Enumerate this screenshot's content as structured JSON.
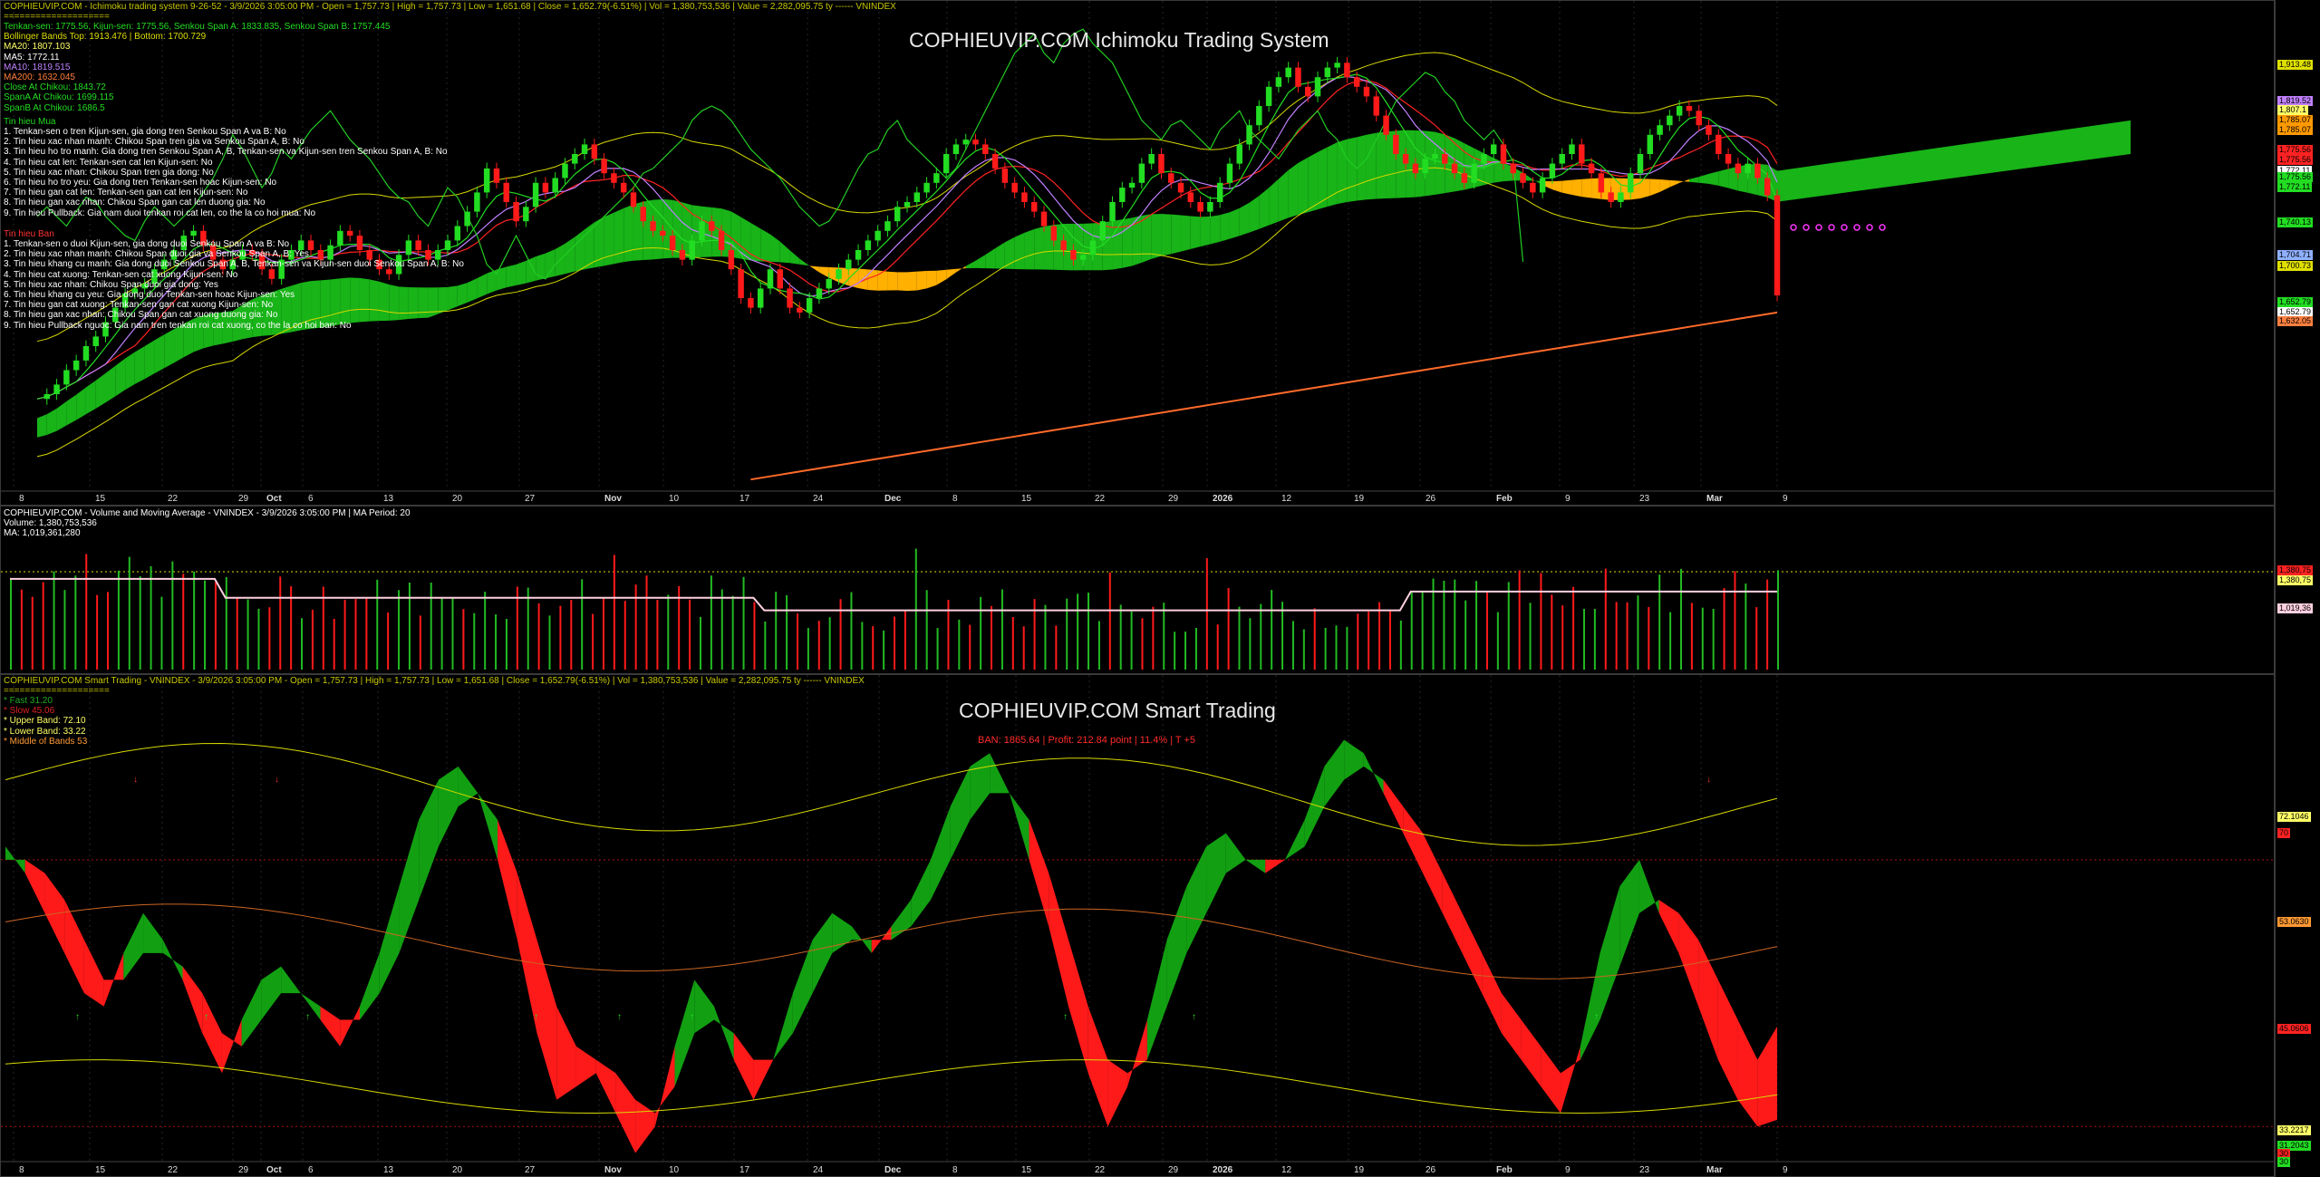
{
  "ichimoku": {
    "title": "COPHIEUVIP.COM Ichimoku Trading System",
    "header": [
      {
        "text": "COPHIEUVIP.COM - Ichimoku trading system 9-26-52 - 3/9/2026 3:05:00 PM - Open = 1,757.73 | High = 1,757.73 | Low = 1,651.68 | Close = 1,652.79(-6.51%) | Vol = 1,380,753,536 | Value = 2,282,095.75 ty ------ VNINDEX",
        "color": "#c8c800"
      },
      {
        "text": "====================",
        "color": "#c8c800"
      }
    ],
    "indicators": [
      {
        "text": "Tenkan-sen: 1775.56, Kijun-sen: 1775.56, Senkou Span A: 1833.835, Senkou Span B: 1757.445",
        "color": "#22dd22"
      },
      {
        "text": "Bollinger Bands Top: 1913.476 | Bottom: 1700.729",
        "color": "#dddd00"
      },
      {
        "text": "MA20: 1807.103",
        "color": "#ffff66"
      },
      {
        "text": "MA5: 1772.11",
        "color": "#ffffff"
      },
      {
        "text": "MA10: 1819.515",
        "color": "#c080ff"
      },
      {
        "text": "MA200: 1632.045",
        "color": "#ff7f3f"
      },
      {
        "text": "Close At Chikou: 1843.72",
        "color": "#22dd22"
      },
      {
        "text": "SpanA At Chikou: 1699.115",
        "color": "#22dd22"
      },
      {
        "text": "SpanB At Chikou: 1686.5",
        "color": "#22dd22"
      }
    ],
    "buy_heading": "Tin hieu Mua",
    "buy_signals": [
      "1. Tenkan-sen o tren Kijun-sen, gia dong tren Senkou Span A va B: No",
      "2. Tin hieu xac nhan manh: Chikou Span tren gia va Senkou Span A, B: No",
      "3. Tin hieu ho tro manh: Gia dong tren Senkou Span A, B, Tenkan-sen va Kijun-sen tren Senkou Span A, B: No",
      "4. Tin hieu cat len: Tenkan-sen cat len Kijun-sen: No",
      "5. Tin hieu xac nhan: Chikou Span tren gia dong: No",
      "6. Tin hieu ho tro yeu: Gia dong tren Tenkan-sen hoac Kijun-sen: No",
      "7. Tin hieu gan cat len: Tenkan-sen gan cat len Kijun-sen: No",
      "8. Tin hieu gan xac nhan: Chikou Span gan cat len duong gia: No",
      "9. Tin hieu Pullback: Gia nam duoi tenkan roi cat len, co the la co hoi mua: No"
    ],
    "sell_heading": "Tin hieu Ban",
    "sell_signals": [
      "1. Tenkan-sen o duoi Kijun-sen, gia dong duoi Senkou Span A va B: No",
      "2. Tin hieu xac nhan manh: Chikou Span duoi gia va Senkou Span A, B: Yes",
      "3. Tin hieu khang cu manh: Gia dong duoi Senkou Span A, B, Tenkan-sen va Kijun-sen duoi Senkou Span A, B: No",
      "4. Tin hieu cat xuong: Tenkan-sen cat xuong Kijun-sen: No",
      "5. Tin hieu xac nhan: Chikou Span duoi gia dong: Yes",
      "6. Tin hieu khang cu yeu: Gia dong duoi Tenkan-sen hoac Kijun-sen: Yes",
      "7. Tin hieu gan cat xuong: Tenkan-sen gan cat xuong Kijun-sen: No",
      "8. Tin hieu gan xac nhan: Chikou Span gan cat xuong duong gia: No",
      "9. Tin hieu Pullback nguoc: Gia nam tren tenkan roi cat xuong, co the la co hoi ban: No"
    ],
    "price_tags": [
      {
        "v": "1,913.48",
        "bg": "#e0e000"
      },
      {
        "v": "1,819.52",
        "bg": "#c080ff"
      },
      {
        "v": "1,807.1",
        "bg": "#ffff66"
      },
      {
        "v": "1,785.07",
        "bg": "#ff9900"
      },
      {
        "v": "1,785.07",
        "bg": "#ff9900"
      },
      {
        "v": "1,775.56",
        "bg": "#ff2222"
      },
      {
        "v": "1,775.56",
        "bg": "#ff2222"
      },
      {
        "v": "1,772.11",
        "bg": "#ffffff"
      },
      {
        "v": "1,775.56",
        "bg": "#22dd22"
      },
      {
        "v": "1,772.11",
        "bg": "#22dd22"
      },
      {
        "v": "1,740.13",
        "bg": "#22dd22"
      },
      {
        "v": "1,704.71",
        "bg": "#8fb0ff"
      },
      {
        "v": "1,700.73",
        "bg": "#e0e000"
      },
      {
        "v": "1,652.79",
        "bg": "#22dd22"
      },
      {
        "v": "1,652.79",
        "bg": "#ffffff"
      },
      {
        "v": "1,632.05",
        "bg": "#ff7f3f"
      }
    ]
  },
  "volume": {
    "header": [
      {
        "text": "COPHIEUVIP.COM - Volume and Moving Average - VNINDEX - 3/9/2026 3:05:00 PM | MA Period: 20",
        "color": "#ffffff"
      },
      {
        "text": "Volume: 1,380,753,536",
        "color": "#ffffff"
      },
      {
        "text": "MA: 1,019,361,280",
        "color": "#ffffff"
      }
    ],
    "tags": [
      {
        "v": "1,380,75",
        "bg": "#ff2222"
      },
      {
        "v": "1,380,75",
        "bg": "#ffff66"
      },
      {
        "v": "1,019,36",
        "bg": "#ffd0e0"
      }
    ]
  },
  "smart": {
    "title": "COPHIEUVIP.COM Smart Trading",
    "subtitle": "BAN:  1865.64  |  Profit: 212.84 point  |  11.4%  |  T +5",
    "header": [
      {
        "text": "COPHIEUVIP.COM Smart Trading - VNINDEX - 3/9/2026 3:05:00 PM - Open = 1,757.73 | High = 1,757.73 | Low = 1,651.68 | Close = 1,652.79(-6.51%) | Vol = 1,380,753,536 | Value = 2,282,095.75 ty ------ VNINDEX",
        "color": "#c8c800"
      },
      {
        "text": "====================",
        "color": "#c8c800"
      }
    ],
    "legend": [
      {
        "text": "* Fast    31.20",
        "color": "#22aa22"
      },
      {
        "text": "* Slow    45.06",
        "color": "#dd2222"
      },
      {
        "text": "* Upper Band:  72.10",
        "color": "#ffff66"
      },
      {
        "text": "* Lower Band:  33.22",
        "color": "#ffff66"
      },
      {
        "text": "* Middle of Bands      53",
        "color": "#ff9933"
      }
    ],
    "tags": [
      {
        "v": "72.1046",
        "bg": "#ffff66"
      },
      {
        "v": "70",
        "bg": "#ff2222"
      },
      {
        "v": "53.0630",
        "bg": "#ff9933"
      },
      {
        "v": "45.0606",
        "bg": "#ff2222"
      },
      {
        "v": "33.2217",
        "bg": "#ffff66"
      },
      {
        "v": "31.2043",
        "bg": "#22dd22"
      },
      {
        "v": "30",
        "bg": "#ff2222"
      },
      {
        "v": "30",
        "bg": "#22dd22"
      }
    ]
  },
  "date_labels": [
    {
      "t": "8",
      "b": false
    },
    {
      "t": "15",
      "b": false
    },
    {
      "t": "22",
      "b": false
    },
    {
      "t": "29",
      "b": false
    },
    {
      "t": "Oct",
      "b": true
    },
    {
      "t": "6",
      "b": false
    },
    {
      "t": "13",
      "b": false
    },
    {
      "t": "20",
      "b": false
    },
    {
      "t": "27",
      "b": false
    },
    {
      "t": "Nov",
      "b": true
    },
    {
      "t": "10",
      "b": false
    },
    {
      "t": "17",
      "b": false
    },
    {
      "t": "24",
      "b": false
    },
    {
      "t": "Dec",
      "b": true
    },
    {
      "t": "8",
      "b": false
    },
    {
      "t": "15",
      "b": false
    },
    {
      "t": "22",
      "b": false
    },
    {
      "t": "29",
      "b": false
    },
    {
      "t": "2026",
      "b": true
    },
    {
      "t": "12",
      "b": false
    },
    {
      "t": "19",
      "b": false
    },
    {
      "t": "26",
      "b": false
    },
    {
      "t": "Feb",
      "b": true
    },
    {
      "t": "9",
      "b": false
    },
    {
      "t": "23",
      "b": false
    },
    {
      "t": "Mar",
      "b": true
    },
    {
      "t": "9",
      "b": false
    }
  ],
  "colors": {
    "up": "#22dd22",
    "down": "#ff1a1a",
    "cloud_up": "#18b418",
    "cloud_down": "#ffb000",
    "grid": "#333333"
  },
  "chart_data": [
    {
      "type": "candlestick",
      "title": "COPHIEUVIP.COM Ichimoku Trading System",
      "ylim": [
        1450,
        1950
      ],
      "last": {
        "open": 1757.73,
        "high": 1757.73,
        "low": 1651.68,
        "close": 1652.79
      },
      "closes": [
        1545,
        1550,
        1560,
        1575,
        1585,
        1600,
        1610,
        1625,
        1640,
        1655,
        1660,
        1665,
        1680,
        1690,
        1700,
        1715,
        1720,
        1705,
        1690,
        1680,
        1690,
        1700,
        1695,
        1680,
        1670,
        1690,
        1700,
        1710,
        1700,
        1690,
        1705,
        1720,
        1715,
        1700,
        1690,
        1680,
        1675,
        1695,
        1710,
        1700,
        1690,
        1700,
        1710,
        1725,
        1740,
        1760,
        1785,
        1770,
        1750,
        1730,
        1745,
        1770,
        1760,
        1775,
        1790,
        1800,
        1810,
        1795,
        1780,
        1770,
        1760,
        1745,
        1730,
        1720,
        1715,
        1700,
        1690,
        1710,
        1730,
        1720,
        1700,
        1680,
        1650,
        1640,
        1660,
        1680,
        1660,
        1640,
        1635,
        1650,
        1660,
        1670,
        1680,
        1690,
        1700,
        1710,
        1720,
        1730,
        1745,
        1750,
        1760,
        1770,
        1780,
        1800,
        1810,
        1815,
        1810,
        1800,
        1785,
        1770,
        1760,
        1750,
        1740,
        1725,
        1710,
        1700,
        1690,
        1695,
        1710,
        1730,
        1750,
        1765,
        1770,
        1790,
        1800,
        1780,
        1770,
        1760,
        1750,
        1740,
        1750,
        1770,
        1790,
        1810,
        1830,
        1850,
        1870,
        1880,
        1890,
        1870,
        1860,
        1880,
        1890,
        1895,
        1880,
        1870,
        1860,
        1840,
        1820,
        1800,
        1790,
        1780,
        1795,
        1800,
        1790,
        1780,
        1770,
        1790,
        1800,
        1810,
        1790,
        1780,
        1770,
        1760,
        1775,
        1790,
        1800,
        1810,
        1790,
        1780,
        1760,
        1750,
        1760,
        1780,
        1800,
        1820,
        1830,
        1840,
        1850,
        1845,
        1830,
        1820,
        1800,
        1790,
        1780,
        1790,
        1775,
        1757,
        1652.79
      ]
    },
    {
      "type": "bar",
      "title": "Volume and Moving Average - VNINDEX",
      "last_volume": 1380753536,
      "ma": 1019361280,
      "ylim": [
        0,
        1700000000
      ]
    },
    {
      "type": "area",
      "title": "COPHIEUVIP.COM Smart Trading",
      "series": [
        {
          "name": "Fast",
          "last": 31.2
        },
        {
          "name": "Slow",
          "last": 45.06
        },
        {
          "name": "Upper Band",
          "last": 72.1
        },
        {
          "name": "Lower Band",
          "last": 33.22
        },
        {
          "name": "Middle of Bands",
          "last": 53
        }
      ],
      "ylim": [
        25,
        95
      ],
      "fast": [
        72,
        68,
        62,
        56,
        50,
        48,
        56,
        62,
        58,
        52,
        44,
        38,
        46,
        52,
        54,
        50,
        46,
        42,
        48,
        56,
        66,
        76,
        82,
        84,
        80,
        70,
        58,
        44,
        34,
        36,
        38,
        32,
        26,
        30,
        42,
        52,
        48,
        40,
        34,
        40,
        50,
        58,
        62,
        60,
        56,
        60,
        64,
        70,
        78,
        84,
        86,
        80,
        70,
        60,
        48,
        38,
        30,
        36,
        46,
        58,
        66,
        72,
        74,
        70,
        68,
        70,
        76,
        84,
        88,
        86,
        80,
        74,
        68,
        62,
        56,
        50,
        44,
        40,
        36,
        32,
        42,
        56,
        66,
        70,
        62,
        56,
        48,
        40,
        34,
        30,
        31
      ],
      "slow": [
        70,
        70,
        68,
        64,
        58,
        52,
        52,
        56,
        56,
        54,
        50,
        44,
        42,
        46,
        50,
        50,
        48,
        46,
        46,
        50,
        56,
        64,
        72,
        78,
        80,
        76,
        68,
        58,
        48,
        42,
        40,
        38,
        34,
        32,
        36,
        44,
        46,
        44,
        40,
        40,
        44,
        50,
        56,
        58,
        58,
        58,
        60,
        64,
        70,
        76,
        80,
        80,
        76,
        68,
        58,
        48,
        40,
        38,
        40,
        48,
        56,
        62,
        68,
        70,
        70,
        70,
        72,
        78,
        82,
        84,
        82,
        78,
        74,
        68,
        62,
        56,
        50,
        46,
        42,
        38,
        40,
        46,
        54,
        62,
        64,
        62,
        58,
        52,
        46,
        40,
        45
      ]
    }
  ]
}
